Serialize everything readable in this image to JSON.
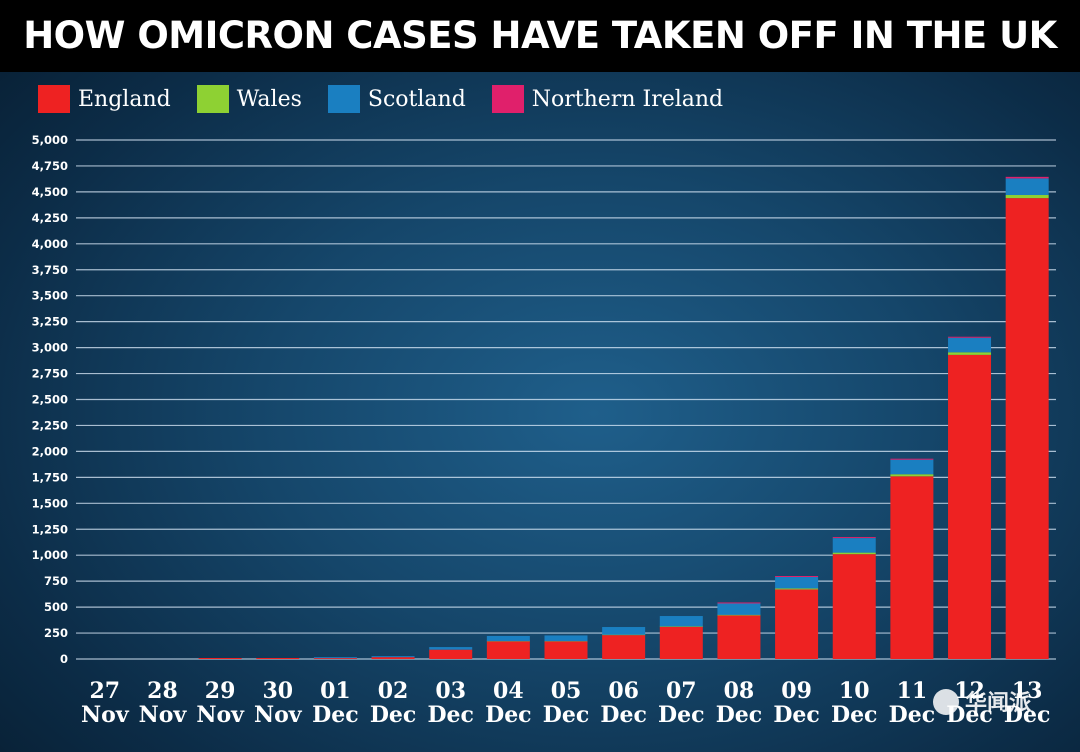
{
  "chart_data": {
    "type": "bar",
    "stacked": true,
    "title": "HOW OMICRON CASES HAVE TAKEN OFF IN THE UK",
    "categories": [
      [
        "27",
        "Nov"
      ],
      [
        "28",
        "Nov"
      ],
      [
        "29",
        "Nov"
      ],
      [
        "30",
        "Nov"
      ],
      [
        "01",
        "Dec"
      ],
      [
        "02",
        "Dec"
      ],
      [
        "03",
        "Dec"
      ],
      [
        "04",
        "Dec"
      ],
      [
        "05",
        "Dec"
      ],
      [
        "06",
        "Dec"
      ],
      [
        "07",
        "Dec"
      ],
      [
        "08",
        "Dec"
      ],
      [
        "09",
        "Dec"
      ],
      [
        "10",
        "Dec"
      ],
      [
        "11",
        "Dec"
      ],
      [
        "12",
        "Dec"
      ],
      [
        "13",
        "Dec"
      ]
    ],
    "series": [
      {
        "name": "England",
        "color": "#ee2222",
        "values": [
          0,
          0,
          2,
          5,
          8,
          18,
          90,
          170,
          170,
          230,
          310,
          420,
          670,
          1010,
          1760,
          2930,
          4440
        ]
      },
      {
        "name": "Wales",
        "color": "#8ed133",
        "values": [
          0,
          0,
          0,
          0,
          0,
          0,
          0,
          2,
          2,
          3,
          4,
          5,
          10,
          15,
          20,
          25,
          30
        ]
      },
      {
        "name": "Scotland",
        "color": "#1a7fc1",
        "values": [
          0,
          0,
          0,
          0,
          4,
          6,
          25,
          50,
          55,
          75,
          100,
          110,
          110,
          140,
          140,
          140,
          160
        ]
      },
      {
        "name": "Northern Ireland",
        "color": "#e0206b",
        "values": [
          0,
          0,
          0,
          0,
          0,
          0,
          0,
          0,
          0,
          0,
          0,
          1,
          2,
          3,
          5,
          8,
          15
        ]
      }
    ],
    "ylim": [
      0,
      5000
    ],
    "yticks": [
      0,
      250,
      500,
      750,
      1000,
      1250,
      1500,
      1750,
      2000,
      2250,
      2500,
      2750,
      3000,
      3250,
      3500,
      3750,
      4000,
      4250,
      4500,
      4750,
      5000
    ],
    "ytick_labels": [
      "0",
      "250",
      "500",
      "750",
      "1,000",
      "1,250",
      "1,500",
      "1,750",
      "2,000",
      "2,250",
      "2,500",
      "2,750",
      "3,000",
      "3,250",
      "3,500",
      "3,750",
      "4,000",
      "4,250",
      "4,500",
      "4,750",
      "5,000"
    ],
    "grid": true,
    "legend": "top-left",
    "xlabel": "",
    "ylabel": ""
  },
  "watermark": "华闻派"
}
